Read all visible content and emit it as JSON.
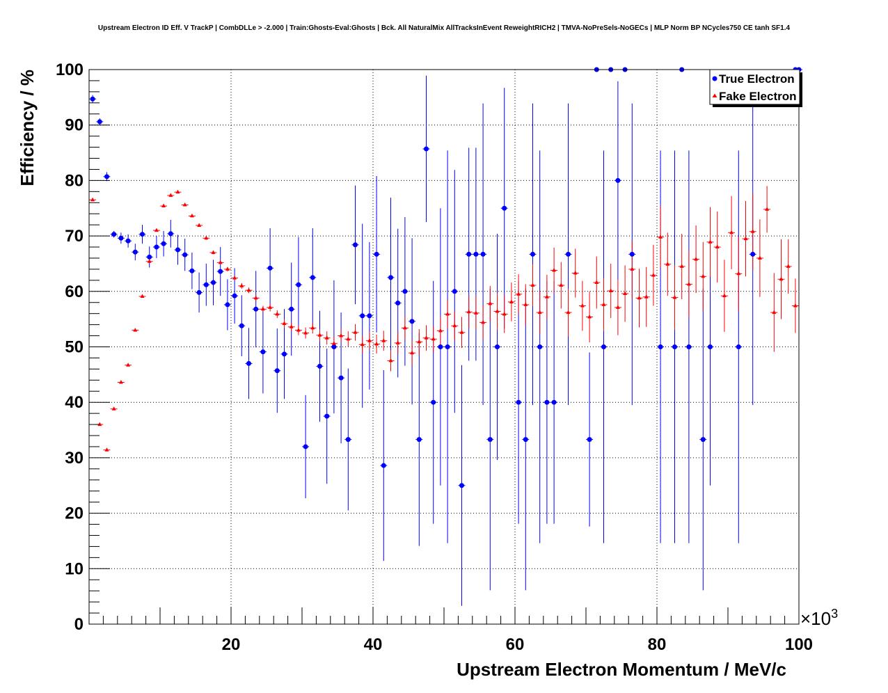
{
  "chart_data": {
    "type": "scatter",
    "title": "Upstream Electron ID Eff. V TrackP | CombDLLe > -2.000 | Train:Ghosts-Eval:Ghosts | Bck. All NaturalMix AllTracksInEvent ReweightRICH2 | TMVA-NoPreSels-NoGECs | MLP Norm BP NCycles750 CE tanh SF1.4",
    "xlabel": "Upstream Electron Momentum / MeV/c",
    "ylabel": "Efficiency / %",
    "x_multiplier": "×10",
    "x_multiplier_exp": "3",
    "xlim": [
      0,
      100
    ],
    "ylim": [
      0,
      100
    ],
    "xticks": [
      20,
      40,
      60,
      80,
      100
    ],
    "yticks": [
      0,
      10,
      20,
      30,
      40,
      50,
      60,
      70,
      80,
      90,
      100
    ],
    "grid": true,
    "legend_position": "top-right",
    "series": [
      {
        "name": "True Electron",
        "color": "#0000ff",
        "marker": "circle",
        "points": [
          [
            0.5,
            94.7,
            0.7
          ],
          [
            1.5,
            90.6,
            0.6
          ],
          [
            2.5,
            80.7,
            0.8
          ],
          [
            3.5,
            70.3,
            0.6
          ],
          [
            4.5,
            69.6,
            1.0
          ],
          [
            5.5,
            69.1,
            1.2
          ],
          [
            6.5,
            67.1,
            1.5
          ],
          [
            7.5,
            70.3,
            1.7
          ],
          [
            8.5,
            66.2,
            1.9
          ],
          [
            9.5,
            68.0,
            2.0
          ],
          [
            10.5,
            68.6,
            2.3
          ],
          [
            11.5,
            70.4,
            2.5
          ],
          [
            12.5,
            67.5,
            2.7
          ],
          [
            13.5,
            66.6,
            2.9
          ],
          [
            14.5,
            63.7,
            3.3
          ],
          [
            15.5,
            59.8,
            3.6
          ],
          [
            16.5,
            61.2,
            3.8
          ],
          [
            17.5,
            61.6,
            4.1
          ],
          [
            18.5,
            63.6,
            4.4
          ],
          [
            19.5,
            57.6,
            4.6
          ],
          [
            20.5,
            59.2,
            5.0
          ],
          [
            21.5,
            53.8,
            5.5
          ],
          [
            22.5,
            47.0,
            6.4
          ],
          [
            23.5,
            56.8,
            6.9
          ],
          [
            24.5,
            49.1,
            7.5
          ],
          [
            25.5,
            64.2,
            7.2
          ],
          [
            26.5,
            45.7,
            7.6
          ],
          [
            27.5,
            48.7,
            8.1
          ],
          [
            28.5,
            56.8,
            8.4
          ],
          [
            29.5,
            61.2,
            8.6
          ],
          [
            30.5,
            32.0,
            9.3
          ],
          [
            31.5,
            62.5,
            8.9
          ],
          [
            32.5,
            46.5,
            10.0
          ],
          [
            33.5,
            37.5,
            12.2
          ],
          [
            34.5,
            50.0,
            12.0
          ],
          [
            35.5,
            44.4,
            11.8
          ],
          [
            36.5,
            33.3,
            12.8
          ],
          [
            37.5,
            68.4,
            10.7
          ],
          [
            38.5,
            55.6,
            16.6
          ],
          [
            39.5,
            55.6,
            13.3
          ],
          [
            40.5,
            66.7,
            14.1
          ],
          [
            41.5,
            28.6,
            17.2
          ],
          [
            42.5,
            62.5,
            14.4
          ],
          [
            43.5,
            57.9,
            13.4
          ],
          [
            44.5,
            60.0,
            13.4
          ],
          [
            45.5,
            54.6,
            15.0
          ],
          [
            46.5,
            33.3,
            19.2
          ],
          [
            47.5,
            85.7,
            13.2
          ],
          [
            48.5,
            40.0,
            21.9
          ],
          [
            49.5,
            50.0,
            25.0
          ],
          [
            50.5,
            50.0,
            35.4
          ],
          [
            51.5,
            60.0,
            21.9
          ],
          [
            52.5,
            25.0,
            21.7
          ],
          [
            53.5,
            66.7,
            19.2
          ],
          [
            54.5,
            66.7,
            19.2
          ],
          [
            55.5,
            66.7,
            27.2
          ],
          [
            56.5,
            33.3,
            27.2
          ],
          [
            57.5,
            50.0,
            20.4
          ],
          [
            58.5,
            75.0,
            21.7
          ],
          [
            60.5,
            40.0,
            21.9
          ],
          [
            61.5,
            33.3,
            27.2
          ],
          [
            62.5,
            66.7,
            27.2
          ],
          [
            63.5,
            50.0,
            35.4
          ],
          [
            64.5,
            40.0,
            21.9
          ],
          [
            65.5,
            40.0,
            21.9
          ],
          [
            67.5,
            66.7,
            27.2
          ],
          [
            70.5,
            33.3,
            15.7
          ],
          [
            71.5,
            100.0,
            0
          ],
          [
            72.5,
            50.0,
            35.4
          ],
          [
            73.5,
            100.0,
            0
          ],
          [
            74.5,
            80.0,
            17.9
          ],
          [
            75.5,
            100.0,
            0
          ],
          [
            76.5,
            66.7,
            27.2
          ],
          [
            80.5,
            50.0,
            35.4
          ],
          [
            82.5,
            50.0,
            35.4
          ],
          [
            83.5,
            100.0,
            0
          ],
          [
            84.5,
            50.0,
            35.4
          ],
          [
            86.5,
            33.3,
            27.2
          ],
          [
            87.5,
            50.0,
            25.0
          ],
          [
            91.5,
            50.0,
            35.4
          ],
          [
            93.5,
            66.7,
            27.2
          ],
          [
            99.5,
            100.0,
            0
          ],
          [
            100.0,
            100.0,
            0
          ]
        ]
      },
      {
        "name": "Fake Electron",
        "color": "#ff0000",
        "marker": "triangle",
        "points": [
          [
            0.5,
            76.5,
            0.2
          ],
          [
            1.5,
            36.0,
            0.2
          ],
          [
            2.5,
            31.4,
            0.2
          ],
          [
            3.5,
            38.8,
            0.2
          ],
          [
            4.5,
            43.6,
            0.2
          ],
          [
            5.5,
            46.7,
            0.2
          ],
          [
            6.5,
            53.0,
            0.2
          ],
          [
            7.5,
            59.1,
            0.2
          ],
          [
            8.5,
            65.4,
            0.2
          ],
          [
            9.5,
            71.0,
            0.2
          ],
          [
            10.5,
            75.4,
            0.2
          ],
          [
            11.5,
            77.3,
            0.2
          ],
          [
            12.5,
            77.9,
            0.2
          ],
          [
            13.5,
            75.6,
            0.2
          ],
          [
            14.5,
            73.6,
            0.2
          ],
          [
            15.5,
            71.9,
            0.2
          ],
          [
            16.5,
            69.6,
            0.3
          ],
          [
            17.5,
            67.0,
            0.3
          ],
          [
            18.5,
            65.2,
            0.3
          ],
          [
            19.5,
            64.0,
            0.4
          ],
          [
            20.5,
            62.4,
            0.4
          ],
          [
            21.5,
            61.0,
            0.5
          ],
          [
            22.5,
            60.2,
            0.5
          ],
          [
            23.5,
            58.8,
            0.6
          ],
          [
            24.5,
            56.8,
            0.6
          ],
          [
            25.5,
            57.1,
            0.7
          ],
          [
            26.5,
            55.9,
            0.7
          ],
          [
            27.5,
            54.2,
            0.8
          ],
          [
            28.5,
            53.6,
            0.8
          ],
          [
            29.5,
            53.0,
            0.9
          ],
          [
            30.5,
            52.5,
            1.0
          ],
          [
            31.5,
            53.4,
            1.0
          ],
          [
            32.5,
            52.1,
            1.1
          ],
          [
            33.5,
            51.6,
            1.2
          ],
          [
            34.5,
            50.6,
            1.2
          ],
          [
            35.5,
            52.0,
            1.3
          ],
          [
            36.5,
            51.4,
            1.4
          ],
          [
            37.5,
            52.6,
            1.5
          ],
          [
            38.5,
            50.4,
            1.6
          ],
          [
            39.5,
            51.1,
            1.6
          ],
          [
            40.5,
            50.5,
            1.7
          ],
          [
            41.5,
            51.1,
            1.8
          ],
          [
            42.5,
            47.5,
            1.9
          ],
          [
            43.5,
            50.7,
            2.0
          ],
          [
            44.5,
            53.4,
            2.1
          ],
          [
            45.5,
            48.9,
            2.2
          ],
          [
            46.5,
            50.9,
            2.3
          ],
          [
            47.5,
            51.6,
            2.3
          ],
          [
            48.5,
            51.4,
            2.4
          ],
          [
            49.5,
            52.9,
            2.5
          ],
          [
            50.5,
            55.9,
            2.6
          ],
          [
            51.5,
            53.8,
            2.7
          ],
          [
            52.5,
            52.6,
            2.8
          ],
          [
            53.5,
            56.3,
            2.9
          ],
          [
            54.5,
            56.1,
            3.0
          ],
          [
            55.5,
            54.4,
            3.1
          ],
          [
            56.5,
            57.8,
            3.2
          ],
          [
            57.5,
            56.4,
            3.3
          ],
          [
            58.5,
            55.9,
            3.4
          ],
          [
            59.5,
            58.1,
            3.5
          ],
          [
            60.5,
            59.5,
            3.6
          ],
          [
            61.5,
            57.6,
            3.7
          ],
          [
            62.5,
            61.1,
            3.8
          ],
          [
            63.5,
            56.2,
            3.9
          ],
          [
            64.5,
            59.0,
            4.0
          ],
          [
            65.5,
            63.8,
            4.1
          ],
          [
            66.5,
            61.1,
            4.2
          ],
          [
            67.5,
            56.2,
            4.3
          ],
          [
            68.5,
            63.3,
            4.4
          ],
          [
            69.5,
            57.4,
            4.5
          ],
          [
            70.5,
            55.4,
            4.6
          ],
          [
            71.5,
            61.6,
            4.7
          ],
          [
            72.5,
            57.6,
            4.8
          ],
          [
            73.5,
            60.1,
            4.9
          ],
          [
            74.5,
            57.1,
            5.0
          ],
          [
            75.5,
            59.6,
            5.1
          ],
          [
            76.5,
            64.0,
            5.2
          ],
          [
            77.5,
            58.8,
            5.3
          ],
          [
            78.5,
            59.0,
            5.4
          ],
          [
            79.5,
            62.9,
            5.5
          ],
          [
            80.5,
            69.8,
            5.6
          ],
          [
            81.5,
            64.9,
            5.7
          ],
          [
            82.5,
            58.9,
            5.8
          ],
          [
            83.5,
            64.5,
            5.9
          ],
          [
            84.5,
            61.3,
            6.0
          ],
          [
            85.5,
            65.8,
            6.1
          ],
          [
            86.5,
            62.7,
            6.2
          ],
          [
            87.5,
            68.9,
            6.3
          ],
          [
            88.5,
            68.0,
            6.4
          ],
          [
            89.5,
            59.2,
            6.5
          ],
          [
            90.5,
            70.6,
            6.6
          ],
          [
            91.5,
            63.2,
            6.7
          ],
          [
            92.5,
            69.5,
            6.8
          ],
          [
            93.5,
            70.8,
            6.9
          ],
          [
            94.5,
            66.0,
            7.0
          ],
          [
            95.5,
            74.8,
            4.2
          ],
          [
            96.5,
            56.2,
            7.1
          ],
          [
            97.5,
            62.2,
            7.2
          ],
          [
            98.5,
            64.5,
            4.9
          ],
          [
            99.5,
            57.4,
            4.9
          ]
        ]
      }
    ]
  }
}
